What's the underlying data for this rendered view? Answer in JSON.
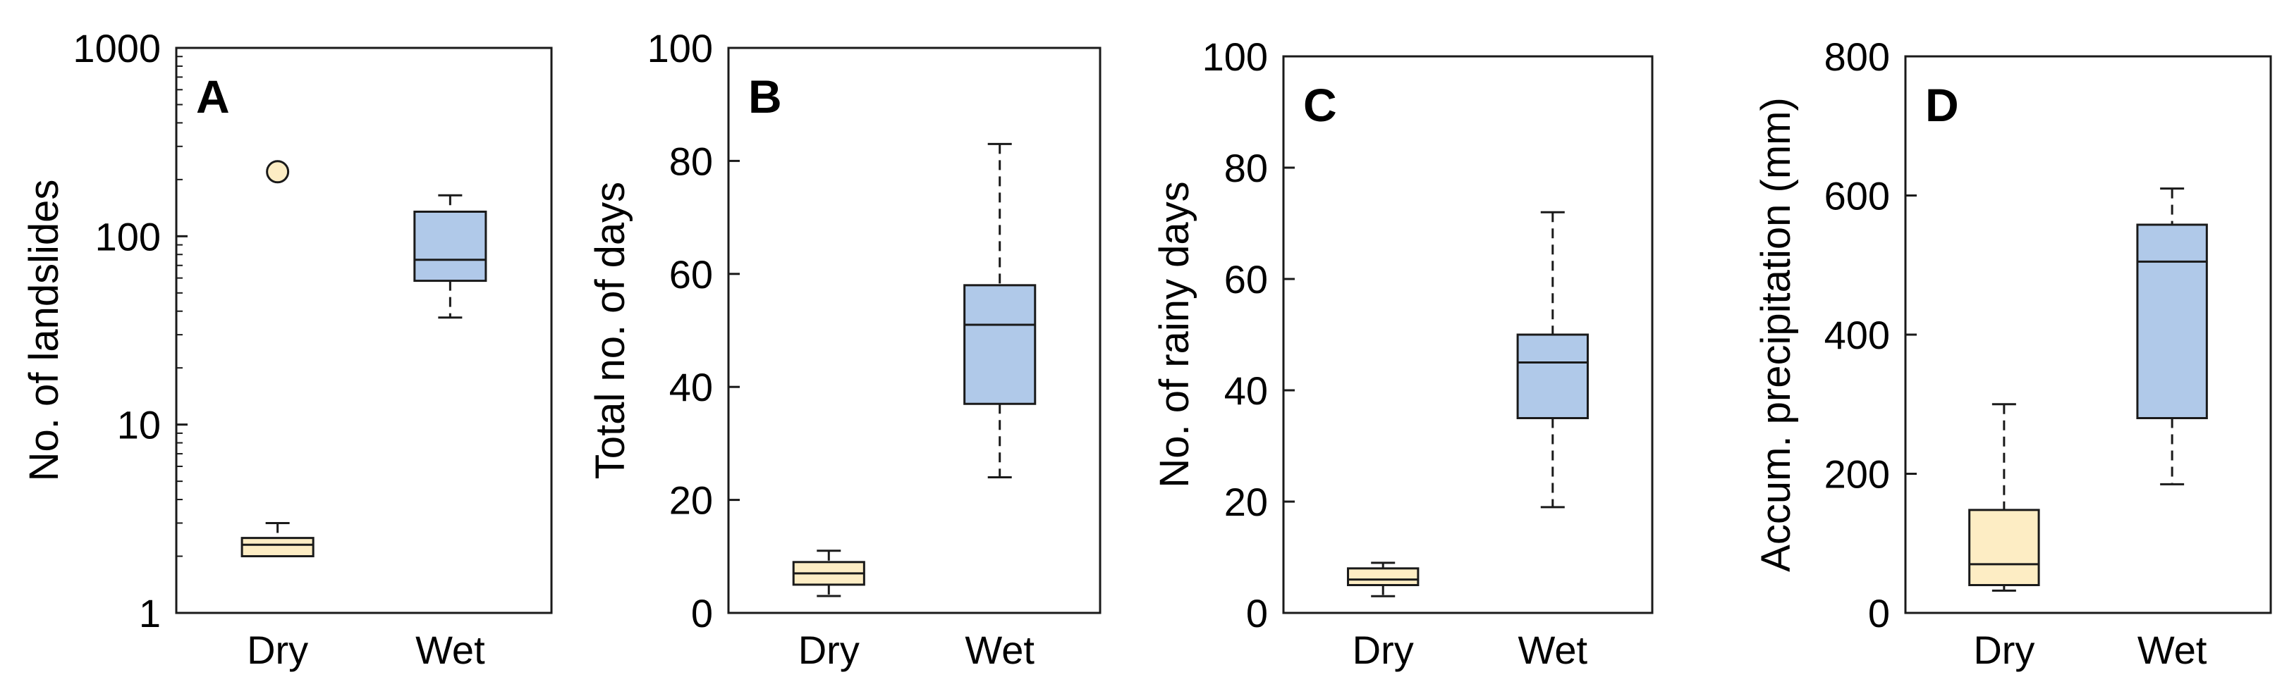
{
  "figure": {
    "colors": {
      "dry": "#fdedc4",
      "wet": "#b0c9e9",
      "stroke": "#1a1a1a"
    }
  },
  "chart_data": [
    {
      "type": "box",
      "panel": "A",
      "ylabel": "No. of landslides",
      "yscale": "log",
      "ylim": [
        1,
        1000
      ],
      "yticks": [
        1,
        10,
        100,
        1000
      ],
      "ytick_labels": [
        "1",
        "10",
        "100",
        "1000"
      ],
      "categories": [
        "Dry",
        "Wet"
      ],
      "boxes": [
        {
          "category": "Dry",
          "whisker_low": 2,
          "q1": 2,
          "median": 2.3,
          "q3": 2.5,
          "whisker_high": 3,
          "outliers": [
            220
          ]
        },
        {
          "category": "Wet",
          "whisker_low": 37,
          "q1": 58,
          "median": 75,
          "q3": 135,
          "whisker_high": 165,
          "outliers": []
        }
      ]
    },
    {
      "type": "box",
      "panel": "B",
      "ylabel": "Total no. of days",
      "yscale": "linear",
      "ylim": [
        0,
        100
      ],
      "yticks": [
        0,
        20,
        40,
        60,
        80,
        100
      ],
      "ytick_labels": [
        "0",
        "20",
        "40",
        "60",
        "80",
        "100"
      ],
      "categories": [
        "Dry",
        "Wet"
      ],
      "boxes": [
        {
          "category": "Dry",
          "whisker_low": 3,
          "q1": 5,
          "median": 7,
          "q3": 9,
          "whisker_high": 11,
          "outliers": []
        },
        {
          "category": "Wet",
          "whisker_low": 24,
          "q1": 37,
          "median": 51,
          "q3": 58,
          "whisker_high": 83,
          "outliers": []
        }
      ]
    },
    {
      "type": "box",
      "panel": "C",
      "ylabel": "No. of rainy days",
      "yscale": "linear",
      "ylim": [
        0,
        100
      ],
      "yticks": [
        0,
        20,
        40,
        60,
        80,
        100
      ],
      "ytick_labels": [
        "0",
        "20",
        "40",
        "60",
        "80",
        "100"
      ],
      "categories": [
        "Dry",
        "Wet"
      ],
      "boxes": [
        {
          "category": "Dry",
          "whisker_low": 3,
          "q1": 5,
          "median": 6,
          "q3": 8,
          "whisker_high": 9,
          "outliers": []
        },
        {
          "category": "Wet",
          "whisker_low": 19,
          "q1": 35,
          "median": 45,
          "q3": 50,
          "whisker_high": 72,
          "outliers": []
        }
      ]
    },
    {
      "type": "box",
      "panel": "D",
      "ylabel": "Accum. precipitation (mm)",
      "yscale": "linear",
      "ylim": [
        0,
        800
      ],
      "yticks": [
        0,
        200,
        400,
        600,
        800
      ],
      "ytick_labels": [
        "0",
        "200",
        "400",
        "600",
        "800"
      ],
      "categories": [
        "Dry",
        "Wet"
      ],
      "boxes": [
        {
          "category": "Dry",
          "whisker_low": 32,
          "q1": 40,
          "median": 70,
          "q3": 148,
          "whisker_high": 300,
          "outliers": []
        },
        {
          "category": "Wet",
          "whisker_low": 185,
          "q1": 280,
          "median": 505,
          "q3": 558,
          "whisker_high": 610,
          "outliers": []
        }
      ]
    }
  ]
}
